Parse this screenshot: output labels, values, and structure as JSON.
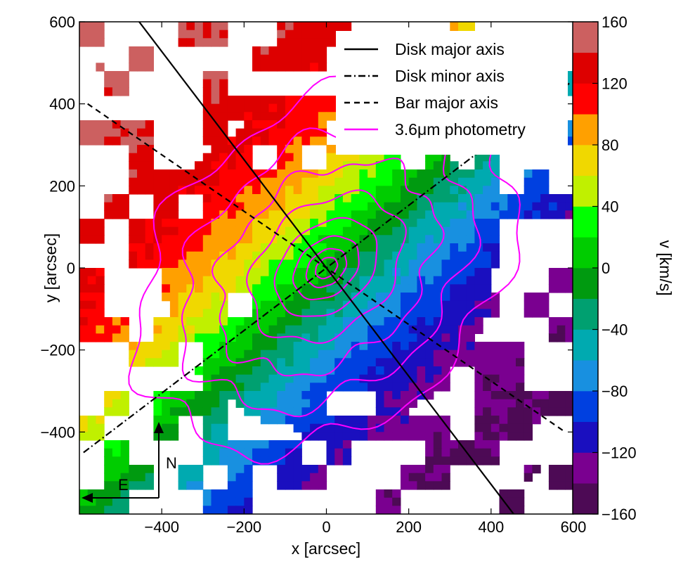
{
  "chart_data": {
    "type": "heatmap",
    "title": "",
    "xlabel": "x [arcsec]",
    "ylabel": "y [arcsec]",
    "xlim": [
      -600,
      600
    ],
    "ylim": [
      -600,
      600
    ],
    "xticks": [
      -400,
      -200,
      0,
      200,
      400,
      600
    ],
    "xtick_labels": [
      "−400",
      "−200",
      "0",
      "200",
      "400",
      "600"
    ],
    "yticks": [
      600,
      400,
      200,
      0,
      -200,
      -400
    ],
    "ytick_labels": [
      "600",
      "400",
      "200",
      "0",
      "−200",
      "−400"
    ],
    "colorbar": {
      "label": "v [km/s]",
      "range": [
        -160,
        160
      ],
      "step": 20,
      "tick_values": [
        160,
        120,
        80,
        40,
        0,
        -40,
        -80,
        -120,
        -160
      ],
      "tick_labels": [
        "160",
        "120",
        "80",
        "40",
        "0",
        "−40",
        "−80",
        "−120",
        "−160"
      ],
      "colors": [
        "#4d0a55",
        "#7a0090",
        "#1a0fbf",
        "#0040e0",
        "#1890e0",
        "#00aab0",
        "#00a070",
        "#009a10",
        "#00cc00",
        "#00ff00",
        "#c0f000",
        "#f0d800",
        "#ffa000",
        "#ff0000",
        "#dd0000",
        "#cc6060"
      ]
    },
    "velocity_field": {
      "gradient_angle_deg": 135,
      "peak_velocity": 150,
      "peak_radius": 580
    },
    "lines": [
      {
        "name": "Disk major axis",
        "style": "solid",
        "color": "#000000",
        "x": [
          -470,
          470
        ],
        "y": [
          620,
          -620
        ]
      },
      {
        "name": "Disk minor axis",
        "style": "dashdot",
        "color": "#000000",
        "x": [
          -590,
          590
        ],
        "y": [
          -450,
          450
        ]
      },
      {
        "name": "Bar major axis",
        "style": "dashed",
        "color": "#000000",
        "x": [
          -580,
          580
        ],
        "y": [
          400,
          -400
        ]
      },
      {
        "name": "3.6μm photometry",
        "style": "solid",
        "color": "#ff00ff"
      }
    ],
    "photometry_isophotes": {
      "color": "#ff00ff",
      "angle_deg": 42,
      "semi_major_axes": [
        30,
        55,
        90,
        140,
        210,
        300,
        400,
        520
      ],
      "axis_ratio": 0.72
    },
    "legend": {
      "placement": "top-right",
      "entries": [
        "Disk major axis",
        "Disk minor axis",
        "Bar major axis",
        "3.6μm photometry"
      ]
    },
    "compass": {
      "north": "N",
      "east": "E"
    },
    "grid": false
  }
}
